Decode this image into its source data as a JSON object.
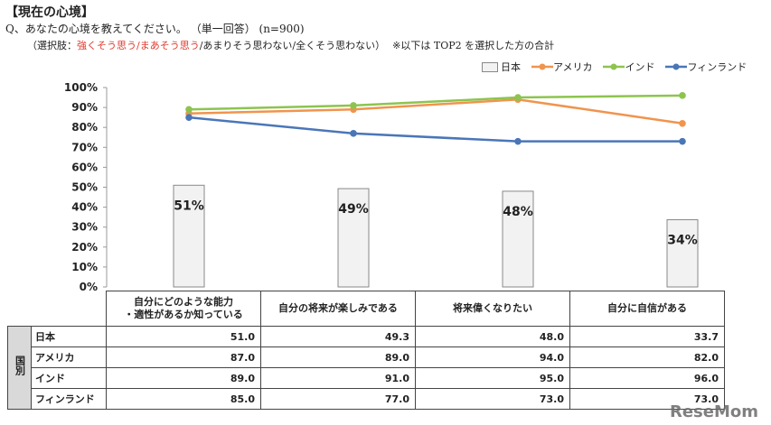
{
  "header": {
    "title": "【現在の心境】",
    "question": "Q、あなたの心境を教えてください。 （単一回答） (n=900)",
    "choices_prefix": "（選択肢：",
    "choices_top2": "強くそう思う/まあそう思う",
    "choices_rest": "/あまりそう思わない/全くそう思わない）",
    "note": "※以下は TOP2 を選択した方の合計"
  },
  "colors": {
    "japan_bar": "#f2f2f2",
    "america": "#f0944e",
    "india": "#8dc44f",
    "finland": "#4a76b8"
  },
  "chart_data": {
    "type": "bar+line",
    "categories": [
      "自分にどのような能力・適性があるか知っている",
      "自分の将来が楽しみである",
      "将来偉くなりたい",
      "自分に自信がある"
    ],
    "series": [
      {
        "name": "日本",
        "kind": "bar",
        "values": [
          51.0,
          49.3,
          48.0,
          33.7
        ],
        "data_labels": [
          "51%",
          "49%",
          "48%",
          "34%"
        ]
      },
      {
        "name": "アメリカ",
        "kind": "line",
        "values": [
          87.0,
          89.0,
          94.0,
          82.0
        ]
      },
      {
        "name": "インド",
        "kind": "line",
        "values": [
          89.0,
          91.0,
          95.0,
          96.0
        ]
      },
      {
        "name": "フィンランド",
        "kind": "line",
        "values": [
          85.0,
          77.0,
          73.0,
          73.0
        ]
      }
    ],
    "y_ticks": [
      "0%",
      "10%",
      "20%",
      "30%",
      "40%",
      "50%",
      "60%",
      "70%",
      "80%",
      "90%",
      "100%"
    ],
    "ylim": [
      0,
      100
    ],
    "grid": false,
    "legend": "top-right"
  },
  "table": {
    "group_label": "国別",
    "col_headers": [
      "自分にどのような能力\n・適性があるか知っている",
      "自分の将来が楽しみである",
      "将来偉くなりたい",
      "自分に自信がある"
    ],
    "rows": [
      {
        "label": "日本",
        "values": [
          "51.0",
          "49.3",
          "48.0",
          "33.7"
        ]
      },
      {
        "label": "アメリカ",
        "values": [
          "87.0",
          "89.0",
          "94.0",
          "82.0"
        ]
      },
      {
        "label": "インド",
        "values": [
          "89.0",
          "91.0",
          "95.0",
          "96.0"
        ]
      },
      {
        "label": "フィンランド",
        "values": [
          "85.0",
          "77.0",
          "73.0",
          "73.0"
        ]
      }
    ]
  },
  "watermark": "ReseMom"
}
